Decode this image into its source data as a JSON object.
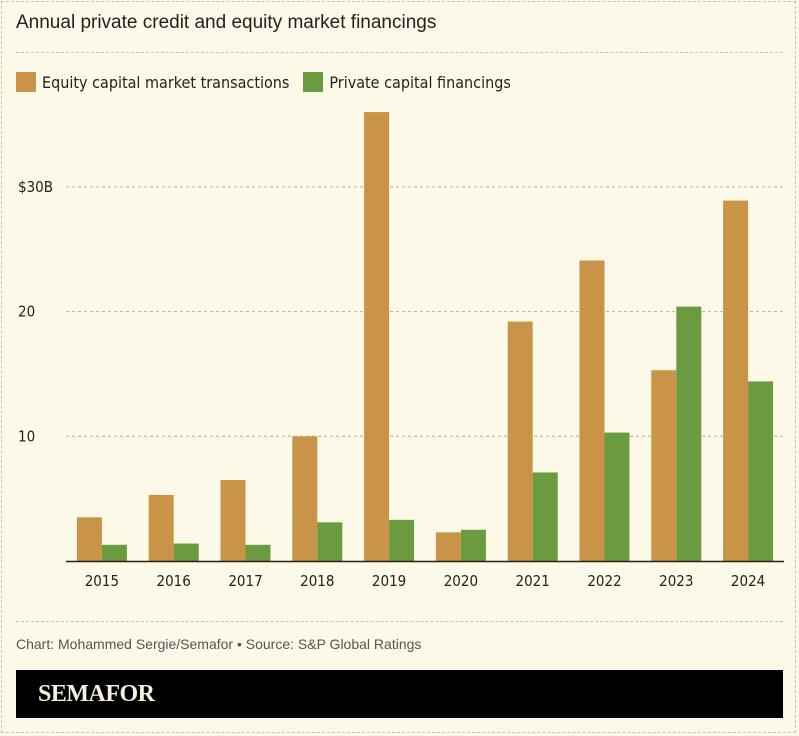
{
  "title": "Annual private credit and equity market financings",
  "colors": {
    "equity": "#c99448",
    "private": "#6b9b3f",
    "background": "#fdf9e8"
  },
  "chart_data": {
    "type": "bar",
    "title": "Annual private credit and equity market financings",
    "categories": [
      "2015",
      "2016",
      "2017",
      "2018",
      "2019",
      "2020",
      "2021",
      "2022",
      "2023",
      "2024"
    ],
    "series": [
      {
        "name": "Equity capital market transactions",
        "values": [
          3.5,
          5.3,
          6.5,
          10.0,
          36.0,
          2.3,
          19.2,
          24.1,
          15.3,
          28.9
        ]
      },
      {
        "name": "Private capital financings",
        "values": [
          1.3,
          1.4,
          1.3,
          3.1,
          3.3,
          2.5,
          7.1,
          10.3,
          20.4,
          14.4
        ]
      }
    ],
    "yticks": [
      {
        "value": 10,
        "label": "10"
      },
      {
        "value": 20,
        "label": "20"
      },
      {
        "value": 30,
        "label": "$30B"
      }
    ],
    "ylim": [
      0,
      36
    ],
    "xlabel": "",
    "ylabel": "",
    "grid": true,
    "legend": "top-left"
  },
  "footer": "Chart: Mohammed Sergie/Semafor • Source: S&P Global Ratings",
  "logo": "SEMAFOR"
}
